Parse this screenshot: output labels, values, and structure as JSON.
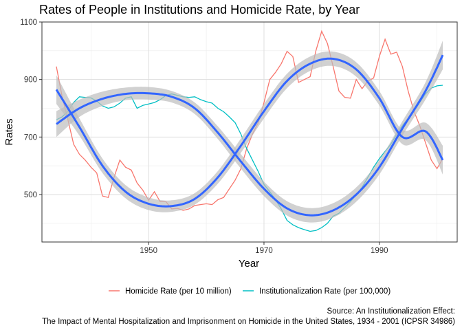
{
  "chart_data": {
    "type": "line",
    "title": "Rates of People in Institutions and Homicide Rate, by Year",
    "xlabel": "Year",
    "ylabel": "Rates",
    "xlim": [
      1931.5,
      2003.5
    ],
    "ylim": [
      335,
      1100
    ],
    "x_ticks": [
      1950,
      1970,
      1990
    ],
    "y_ticks": [
      500,
      700,
      900,
      1100
    ],
    "grid": true,
    "legend_position": "bottom",
    "series": [
      {
        "name": "Homicide Rate (per 10 million)",
        "color": "#F8766D",
        "x": [
          1934,
          1935,
          1936,
          1937,
          1938,
          1939,
          1940,
          1941,
          1942,
          1943,
          1944,
          1945,
          1946,
          1947,
          1948,
          1949,
          1950,
          1951,
          1952,
          1953,
          1954,
          1955,
          1956,
          1957,
          1958,
          1959,
          1960,
          1961,
          1962,
          1963,
          1964,
          1965,
          1966,
          1967,
          1968,
          1969,
          1970,
          1971,
          1972,
          1973,
          1974,
          1975,
          1976,
          1977,
          1978,
          1979,
          1980,
          1981,
          1982,
          1983,
          1984,
          1985,
          1986,
          1987,
          1988,
          1989,
          1990,
          1991,
          1992,
          1993,
          1994,
          1995,
          1996,
          1997,
          1998,
          1999,
          2000,
          2001
        ],
        "y": [
          945,
          840,
          760,
          675,
          640,
          620,
          595,
          575,
          495,
          490,
          560,
          620,
          595,
          585,
          540,
          515,
          480,
          510,
          475,
          475,
          450,
          452,
          445,
          450,
          462,
          465,
          468,
          465,
          482,
          490,
          520,
          550,
          590,
          660,
          710,
          750,
          820,
          900,
          925,
          955,
          998,
          980,
          890,
          900,
          910,
          1000,
          1068,
          1025,
          945,
          860,
          838,
          835,
          900,
          868,
          895,
          905,
          980,
          1040,
          988,
          995,
          945,
          860,
          790,
          740,
          680,
          620,
          590,
          625
        ]
      },
      {
        "name": "Institutionalization Rate (per 100,000)",
        "color": "#00BFC4",
        "x": [
          1934,
          1935,
          1936,
          1937,
          1938,
          1939,
          1940,
          1941,
          1942,
          1943,
          1944,
          1945,
          1946,
          1947,
          1948,
          1949,
          1950,
          1951,
          1952,
          1953,
          1954,
          1955,
          1956,
          1957,
          1958,
          1959,
          1960,
          1961,
          1962,
          1963,
          1964,
          1965,
          1966,
          1967,
          1968,
          1969,
          1970,
          1971,
          1972,
          1973,
          1974,
          1975,
          1976,
          1977,
          1978,
          1979,
          1980,
          1981,
          1982,
          1983,
          1984,
          1985,
          1986,
          1987,
          1988,
          1989,
          1990,
          1991,
          1992,
          1993,
          1994,
          1995,
          1996,
          1997,
          1998,
          1999,
          2000,
          2001
        ],
        "y": [
          760,
          770,
          790,
          820,
          840,
          838,
          836,
          825,
          808,
          800,
          805,
          818,
          835,
          840,
          800,
          810,
          815,
          820,
          830,
          845,
          850,
          845,
          840,
          838,
          840,
          830,
          823,
          818,
          800,
          788,
          770,
          750,
          710,
          660,
          620,
          580,
          535,
          510,
          482,
          450,
          410,
          395,
          385,
          378,
          372,
          375,
          385,
          400,
          425,
          435,
          455,
          475,
          500,
          525,
          560,
          595,
          625,
          650,
          675,
          710,
          740,
          765,
          790,
          820,
          850,
          870,
          878,
          880
        ]
      }
    ],
    "smooth": {
      "color": "#3366FF",
      "band_color": "#BEBEBE",
      "homicide": {
        "x": [
          1934,
          1938,
          1942,
          1946,
          1950,
          1954,
          1958,
          1962,
          1966,
          1970,
          1974,
          1978,
          1982,
          1986,
          1990,
          1994,
          1998,
          2001
        ],
        "y": [
          865,
          735,
          600,
          510,
          468,
          460,
          485,
          560,
          670,
          790,
          895,
          955,
          972,
          935,
          835,
          700,
          720,
          620
        ],
        "band": [
          50,
          30,
          25,
          23,
          22,
          20,
          20,
          22,
          25,
          25,
          25,
          25,
          25,
          25,
          25,
          25,
          30,
          50
        ]
      },
      "institution": {
        "x": [
          1934,
          1938,
          1942,
          1946,
          1950,
          1954,
          1958,
          1962,
          1966,
          1970,
          1974,
          1978,
          1982,
          1986,
          1990,
          1994,
          1998,
          2001
        ],
        "y": [
          745,
          800,
          833,
          850,
          852,
          840,
          800,
          715,
          615,
          520,
          452,
          428,
          445,
          500,
          595,
          730,
          860,
          985
        ],
        "band": [
          45,
          30,
          25,
          22,
          22,
          20,
          20,
          22,
          25,
          25,
          25,
          25,
          25,
          25,
          25,
          25,
          30,
          50
        ]
      }
    }
  },
  "caption": {
    "line1": "Source: An Institutionalization Effect:",
    "line2": "The Impact of Mental Hospitalization and Imprisonment on Homicide in the United States, 1934 - 2001 (ICPSR 34986)"
  }
}
